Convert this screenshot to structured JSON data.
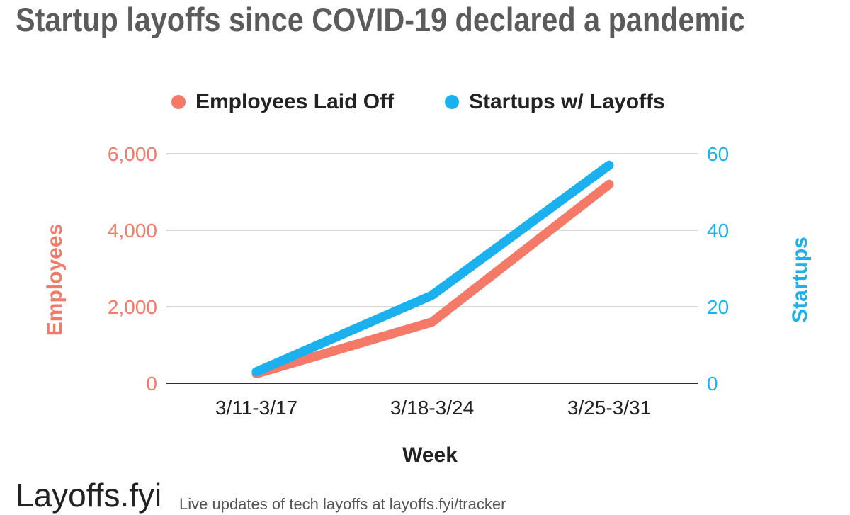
{
  "title": "Startup layoffs since COVID-19 declared a pandemic",
  "footer": {
    "brand": "Layoffs.fyi",
    "tagline": "Live updates of tech layoffs at layoffs.fyi/tracker"
  },
  "colors": {
    "employees": "#f47a67",
    "startups": "#1bb1ef",
    "grid": "#cccccc",
    "axis": "#333333"
  },
  "chart_data": {
    "type": "line",
    "categories": [
      "3/11-3/17",
      "3/18-3/24",
      "3/25-3/31"
    ],
    "xlabel": "Week",
    "legend_position": "top",
    "grid": true,
    "series": [
      {
        "name": "Employees Laid Off",
        "axis": "left",
        "color": "#f47a67",
        "values": [
          250,
          1600,
          5200
        ]
      },
      {
        "name": "Startups w/ Layoffs",
        "axis": "right",
        "color": "#1bb1ef",
        "values": [
          3,
          23,
          57
        ]
      }
    ],
    "y_left": {
      "label": "Employees",
      "ylim": [
        0,
        6000
      ],
      "ticks": [
        0,
        2000,
        4000,
        6000
      ],
      "tick_labels": [
        "0",
        "2,000",
        "4,000",
        "6,000"
      ]
    },
    "y_right": {
      "label": "Startups",
      "ylim": [
        0,
        60
      ],
      "ticks": [
        0,
        20,
        40,
        60
      ],
      "tick_labels": [
        "0",
        "20",
        "40",
        "60"
      ]
    }
  }
}
